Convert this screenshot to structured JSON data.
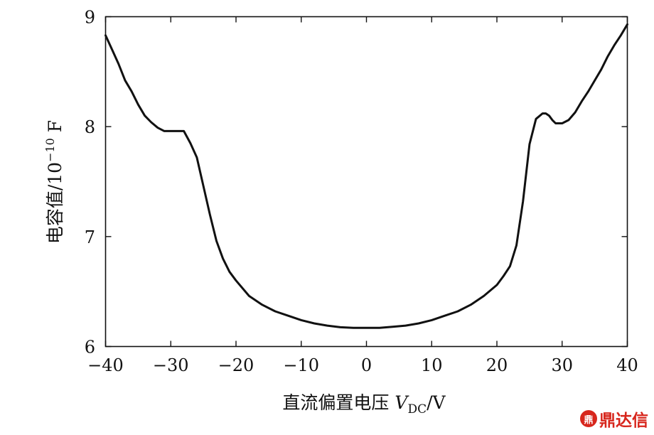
{
  "chart_data": {
    "type": "line",
    "title": "",
    "xlabel": {
      "main": "直流偏置电压 ",
      "var": "V",
      "sub": "DC",
      "unit": "/V"
    },
    "ylabel": {
      "main": "电容值/10",
      "sup": "−10",
      "unit": " F"
    },
    "xlim": [
      -40,
      40
    ],
    "ylim": [
      6,
      9
    ],
    "xticks": [
      -40,
      -30,
      -20,
      -10,
      0,
      10,
      20,
      30,
      40
    ],
    "xtick_labels": [
      "−40",
      "−30",
      "−20",
      "−10",
      "0",
      "10",
      "20",
      "30",
      "40"
    ],
    "yticks": [
      6,
      7,
      8,
      9
    ],
    "ytick_labels": [
      "6",
      "7",
      "8",
      "9"
    ],
    "grid": false,
    "series": [
      {
        "color": "#111111",
        "x": [
          -40,
          -39,
          -38,
          -37,
          -36,
          -35,
          -34,
          -33,
          -32,
          -31,
          -30,
          -29,
          -28,
          -27,
          -26,
          -25,
          -24,
          -23,
          -22,
          -21,
          -20,
          -18,
          -16,
          -14,
          -12,
          -10,
          -8,
          -6,
          -4,
          -2,
          0,
          2,
          4,
          6,
          8,
          10,
          12,
          14,
          16,
          18,
          20,
          21,
          22,
          23,
          24,
          25,
          26,
          27,
          27.5,
          28,
          28.5,
          29,
          30,
          31,
          32,
          33,
          34,
          35,
          36,
          37,
          38,
          39,
          40
        ],
        "y": [
          8.83,
          8.7,
          8.57,
          8.42,
          8.32,
          8.2,
          8.1,
          8.04,
          7.99,
          7.96,
          7.96,
          7.96,
          7.96,
          7.85,
          7.72,
          7.46,
          7.2,
          6.96,
          6.8,
          6.68,
          6.6,
          6.46,
          6.38,
          6.32,
          6.28,
          6.24,
          6.21,
          6.19,
          6.175,
          6.17,
          6.17,
          6.17,
          6.18,
          6.19,
          6.21,
          6.24,
          6.28,
          6.32,
          6.38,
          6.46,
          6.56,
          6.64,
          6.73,
          6.92,
          7.32,
          7.84,
          8.07,
          8.12,
          8.12,
          8.1,
          8.06,
          8.03,
          8.03,
          8.06,
          8.13,
          8.23,
          8.32,
          8.42,
          8.52,
          8.64,
          8.74,
          8.83,
          8.93
        ]
      }
    ]
  },
  "watermark": {
    "badge": "鼎",
    "text": "鼎达信"
  }
}
